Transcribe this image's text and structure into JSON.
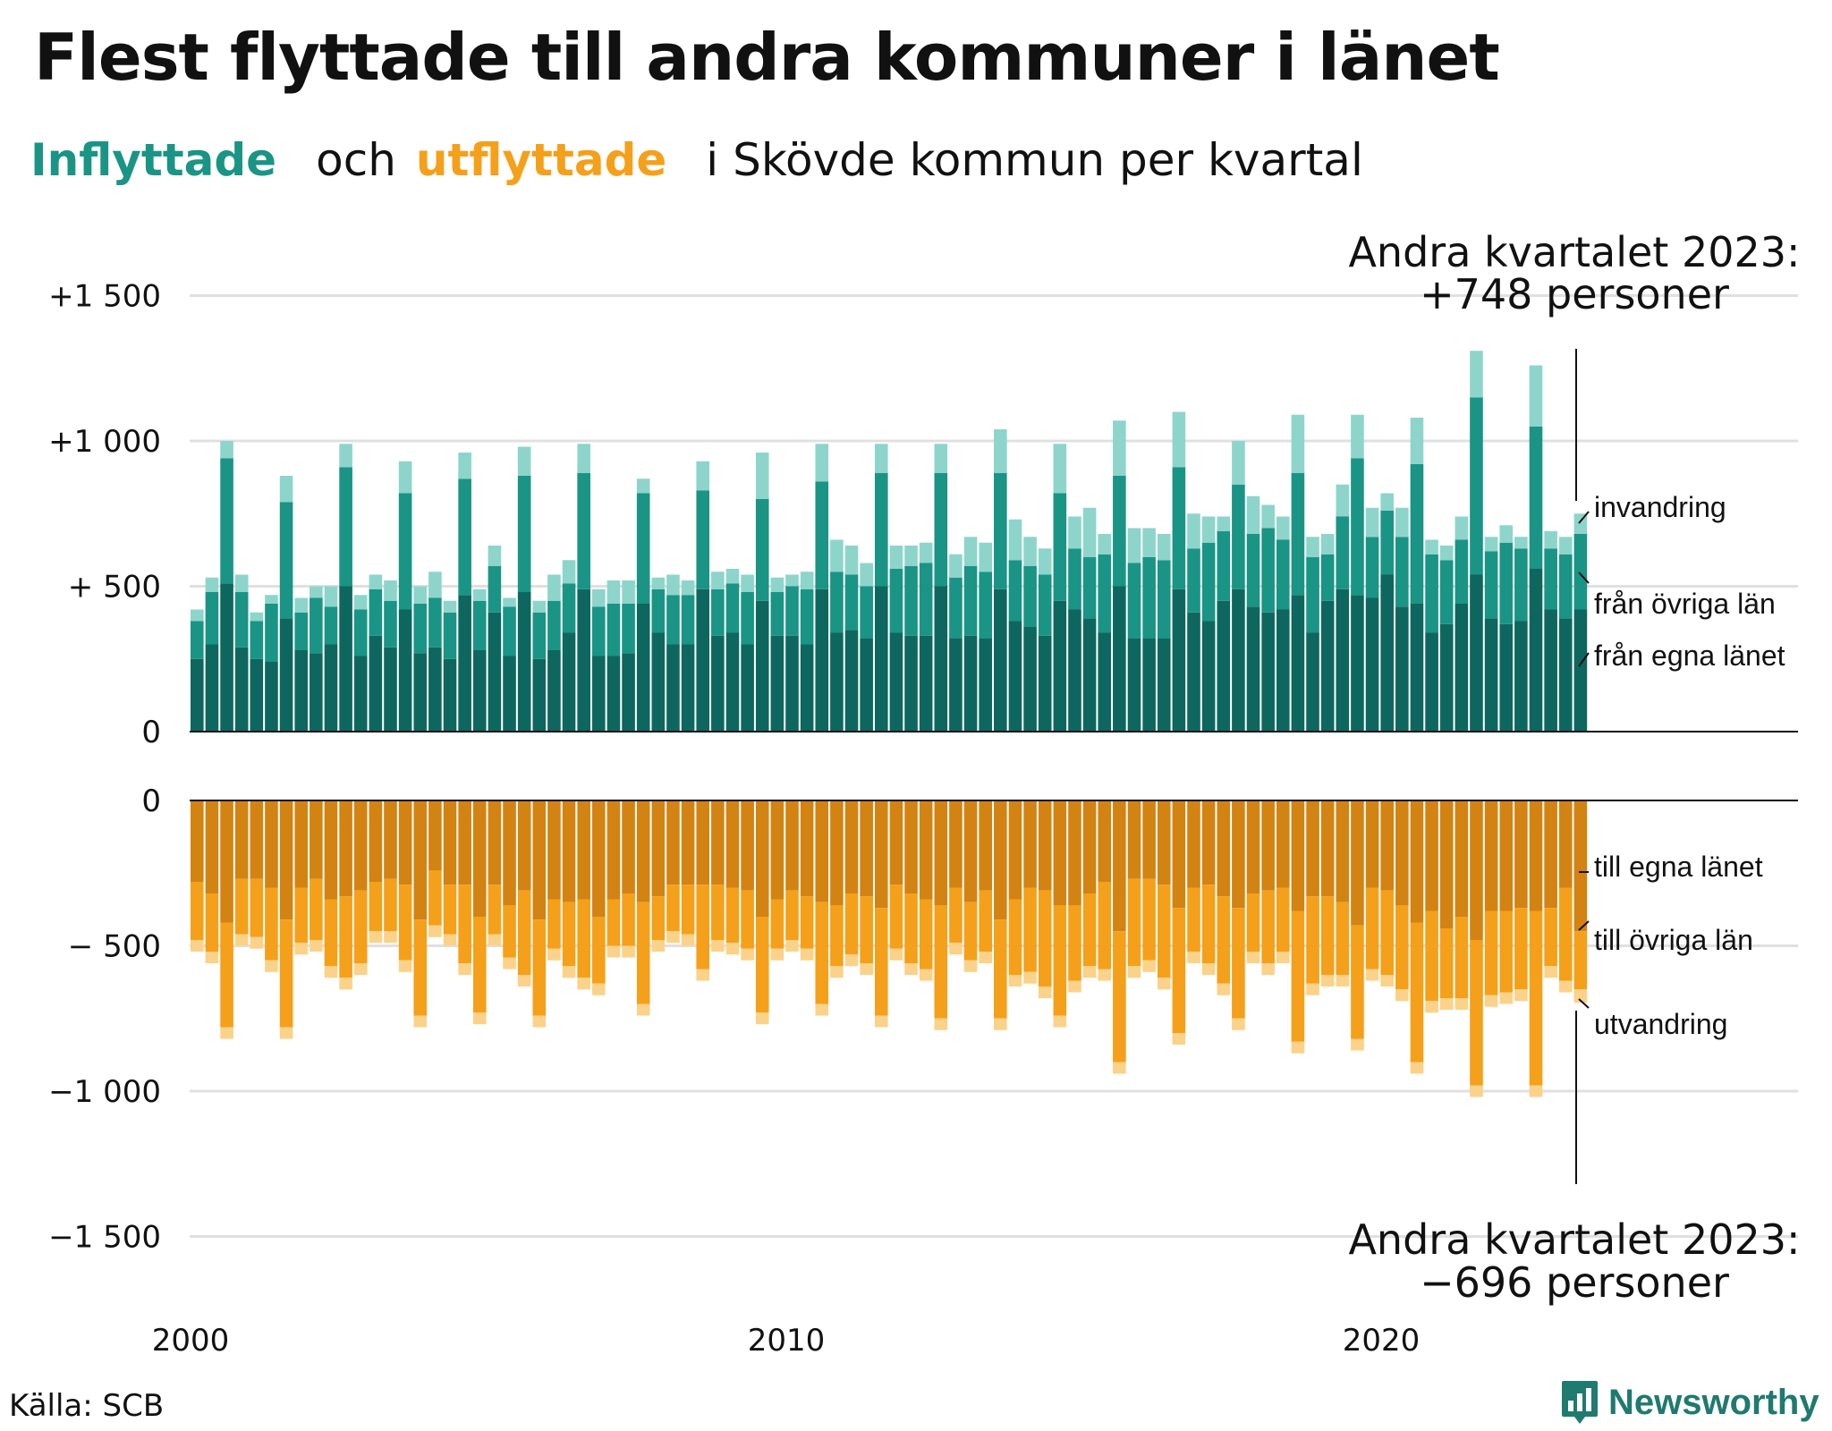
{
  "header": {
    "title": "Flest flyttade till andra kommuner i länet",
    "subtitle_in": "Inflyttade",
    "subtitle_and": "och",
    "subtitle_out": "utflyttade",
    "subtitle_rest": "i Skövde  kommun  per  kvartal"
  },
  "footer": {
    "source": "Källa: SCB",
    "logo_text": "Newsworthy"
  },
  "colors": {
    "in_own": "#0e675e",
    "in_other": "#1a9485",
    "in_immig": "#8dd5cb",
    "out_own": "#d38312",
    "out_other": "#f5a01a",
    "out_emig": "#fbd289",
    "grid": "#e0e0e0",
    "axis": "#111111"
  },
  "chart_data": {
    "type": "bar",
    "stacked": true,
    "x_start": "2000 Q1",
    "x_end": "2023 Q2",
    "x_ticks": [
      "2000",
      "2010",
      "2020"
    ],
    "y_ticks": [
      "+1 500",
      "+1 000",
      "+  500",
      "0",
      "0",
      "−  500",
      "−1 000",
      "−1 500"
    ],
    "ylim_in": [
      0,
      1500
    ],
    "ylim_out": [
      -1500,
      0
    ],
    "labels_in": [
      "invandring",
      "från övriga län",
      "från egna länet"
    ],
    "labels_out": [
      "till egna länet",
      "till övriga län",
      "utvandring"
    ],
    "annotation_in": [
      "Andra kvartalet 2023:",
      "+748 personer"
    ],
    "annotation_out": [
      "Andra kvartalet 2023:",
      "−696 personer"
    ],
    "series_in": [
      {
        "name": "från egna länet",
        "values": [
          250,
          300,
          510,
          290,
          250,
          240,
          390,
          280,
          270,
          300,
          500,
          260,
          330,
          290,
          420,
          270,
          290,
          250,
          470,
          280,
          410,
          260,
          480,
          250,
          280,
          340,
          490,
          260,
          260,
          270,
          440,
          340,
          300,
          300,
          490,
          330,
          340,
          300,
          450,
          330,
          330,
          300,
          490,
          340,
          350,
          320,
          500,
          340,
          330,
          330,
          500,
          320,
          330,
          320,
          490,
          380,
          360,
          330,
          450,
          420,
          390,
          340,
          500,
          320,
          320,
          320,
          490,
          410,
          380,
          450,
          490,
          430,
          410,
          420,
          470,
          340,
          450,
          490,
          470,
          460,
          540,
          430,
          440,
          340,
          370,
          440,
          540,
          390,
          370,
          380,
          560,
          420,
          390,
          420
        ]
      },
      {
        "name": "från övriga län",
        "values": [
          130,
          180,
          430,
          190,
          130,
          200,
          400,
          130,
          190,
          130,
          410,
          160,
          160,
          160,
          400,
          170,
          170,
          160,
          400,
          170,
          160,
          170,
          400,
          160,
          170,
          170,
          400,
          170,
          180,
          170,
          380,
          150,
          170,
          170,
          340,
          160,
          170,
          180,
          350,
          150,
          170,
          190,
          370,
          210,
          190,
          180,
          390,
          220,
          240,
          250,
          390,
          210,
          240,
          230,
          400,
          210,
          210,
          210,
          370,
          210,
          210,
          270,
          380,
          260,
          280,
          270,
          420,
          220,
          270,
          240,
          360,
          250,
          290,
          240,
          420,
          260,
          160,
          250,
          470,
          210,
          220,
          240,
          480,
          270,
          220,
          220,
          610,
          230,
          280,
          250,
          490,
          210,
          220,
          260
        ]
      },
      {
        "name": "invandring",
        "values": [
          40,
          50,
          60,
          60,
          30,
          30,
          90,
          50,
          40,
          70,
          80,
          50,
          50,
          70,
          110,
          60,
          90,
          40,
          90,
          40,
          70,
          30,
          100,
          40,
          90,
          80,
          100,
          60,
          80,
          80,
          50,
          40,
          70,
          50,
          100,
          60,
          50,
          60,
          160,
          50,
          40,
          60,
          130,
          110,
          100,
          80,
          100,
          80,
          70,
          70,
          100,
          80,
          100,
          100,
          150,
          140,
          100,
          90,
          170,
          110,
          170,
          70,
          190,
          120,
          100,
          90,
          190,
          120,
          90,
          50,
          150,
          130,
          80,
          80,
          200,
          70,
          70,
          110,
          150,
          100,
          60,
          100,
          160,
          50,
          50,
          80,
          160,
          50,
          60,
          40,
          210,
          60,
          60,
          70
        ]
      }
    ],
    "series_out": [
      {
        "name": "till egna länet",
        "values": [
          280,
          320,
          420,
          270,
          270,
          300,
          410,
          300,
          270,
          340,
          330,
          310,
          280,
          270,
          290,
          410,
          240,
          290,
          290,
          400,
          290,
          360,
          310,
          410,
          340,
          350,
          340,
          400,
          340,
          320,
          350,
          330,
          290,
          290,
          290,
          290,
          300,
          310,
          400,
          340,
          310,
          330,
          350,
          360,
          320,
          330,
          370,
          290,
          320,
          340,
          360,
          300,
          350,
          310,
          410,
          340,
          300,
          310,
          360,
          360,
          320,
          280,
          450,
          270,
          270,
          290,
          370,
          300,
          290,
          330,
          370,
          320,
          310,
          300,
          380,
          330,
          330,
          350,
          430,
          300,
          310,
          360,
          420,
          380,
          440,
          400,
          480,
          380,
          380,
          370,
          380,
          370,
          300,
          450
        ]
      },
      {
        "name": "till övriga län",
        "values": [
          200,
          200,
          360,
          190,
          200,
          250,
          370,
          190,
          210,
          230,
          280,
          250,
          170,
          180,
          260,
          330,
          190,
          170,
          270,
          330,
          170,
          180,
          290,
          330,
          170,
          220,
          270,
          230,
          160,
          180,
          350,
          150,
          160,
          170,
          290,
          190,
          190,
          200,
          330,
          170,
          170,
          180,
          350,
          210,
          210,
          230,
          370,
          220,
          240,
          240,
          390,
          190,
          200,
          210,
          340,
          260,
          290,
          330,
          380,
          260,
          250,
          300,
          450,
          300,
          280,
          320,
          430,
          220,
          270,
          300,
          380,
          200,
          250,
          220,
          450,
          300,
          270,
          250,
          390,
          280,
          290,
          290,
          480,
          310,
          240,
          280,
          500,
          290,
          280,
          280,
          600,
          200,
          320,
          200
        ]
      },
      {
        "name": "utvandring",
        "values": [
          40,
          40,
          40,
          40,
          40,
          40,
          40,
          40,
          40,
          40,
          40,
          40,
          40,
          40,
          40,
          40,
          40,
          40,
          40,
          40,
          40,
          40,
          40,
          40,
          40,
          40,
          40,
          40,
          40,
          40,
          40,
          40,
          40,
          40,
          40,
          40,
          40,
          40,
          40,
          40,
          40,
          40,
          40,
          40,
          40,
          40,
          40,
          40,
          40,
          40,
          40,
          40,
          40,
          40,
          40,
          40,
          40,
          40,
          40,
          40,
          40,
          40,
          40,
          40,
          40,
          40,
          40,
          40,
          40,
          40,
          40,
          40,
          40,
          40,
          40,
          40,
          40,
          40,
          40,
          40,
          40,
          40,
          40,
          40,
          40,
          40,
          40,
          40,
          40,
          40,
          40,
          40,
          40,
          46
        ]
      }
    ]
  }
}
